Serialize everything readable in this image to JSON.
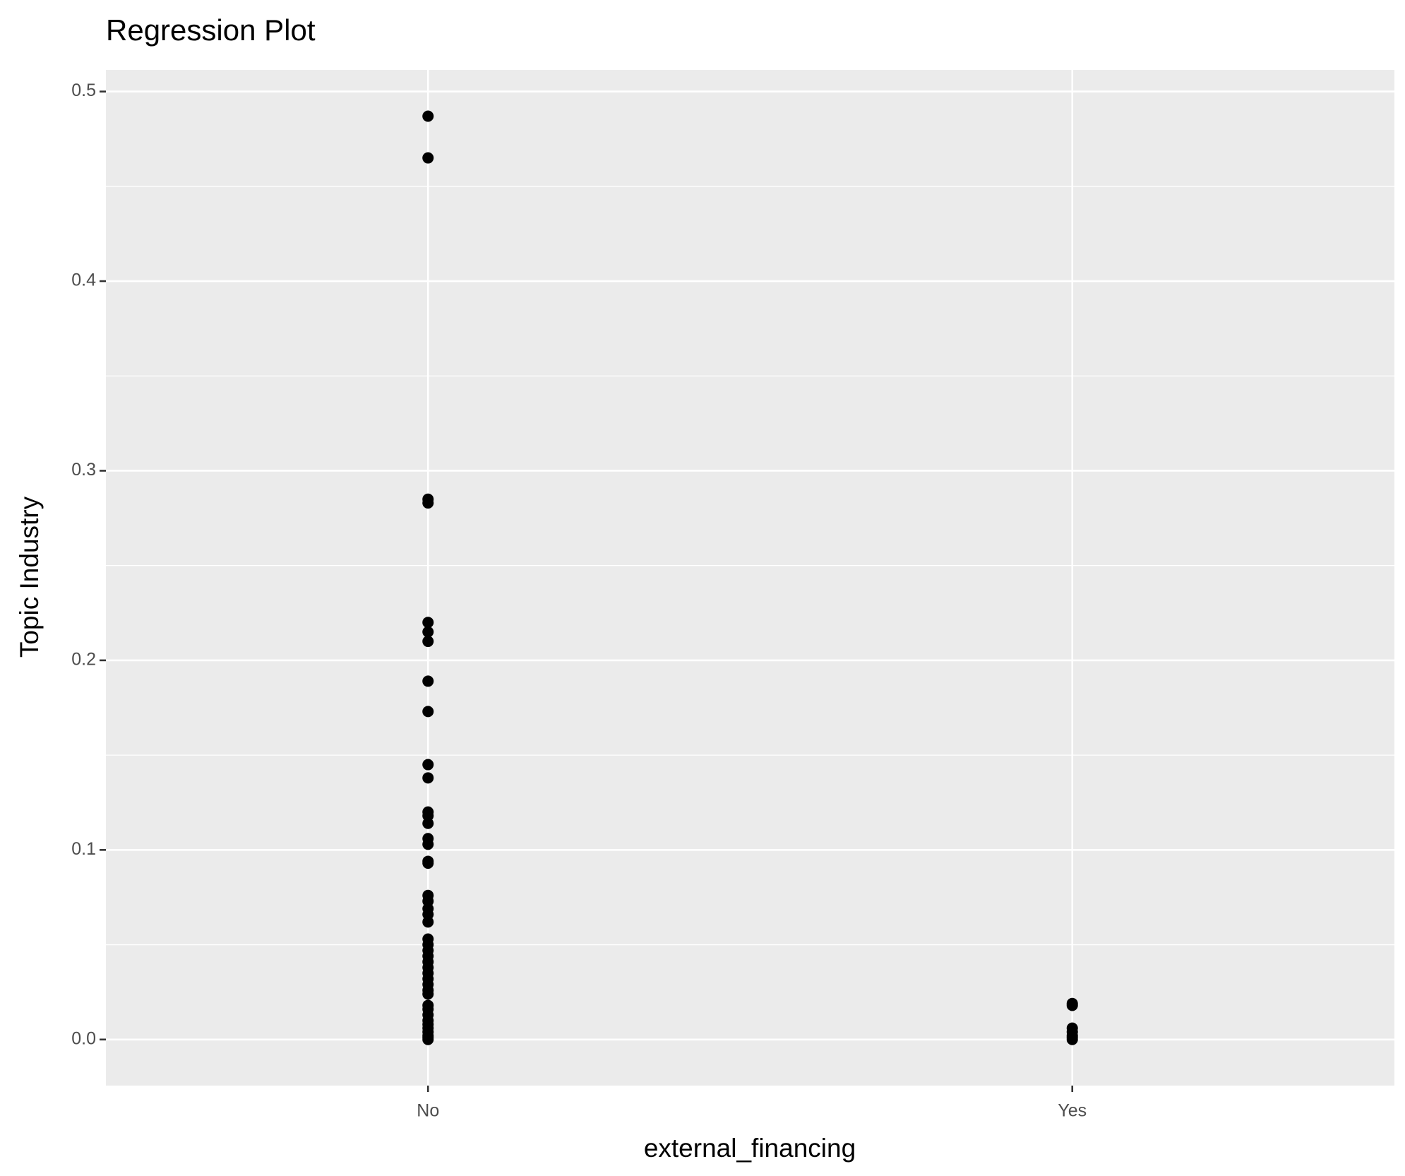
{
  "chart_data": {
    "type": "scatter",
    "title": "Regression Plot",
    "x_label": "external_financing",
    "y_label": "Topic Industry",
    "categories": [
      "No",
      "Yes"
    ],
    "values": [
      [
        0.487,
        0.465,
        0.285,
        0.283,
        0.22,
        0.215,
        0.21,
        0.189,
        0.173,
        0.145,
        0.138,
        0.12,
        0.118,
        0.114,
        0.106,
        0.103,
        0.094,
        0.093,
        0.076,
        0.073,
        0.069,
        0.066,
        0.062,
        0.053,
        0.05,
        0.047,
        0.044,
        0.041,
        0.038,
        0.035,
        0.032,
        0.029,
        0.026,
        0.024,
        0.018,
        0.016,
        0.013,
        0.01,
        0.008,
        0.006,
        0.004,
        0.002,
        0.001,
        0.0
      ],
      [
        0.019,
        0.018,
        0.006,
        0.004,
        0.002,
        0.001,
        0.0
      ]
    ],
    "color": "#000000",
    "ylim": [
      -0.0243,
      0.5114
    ],
    "yticks": [
      0.0,
      0.1,
      0.2,
      0.3,
      0.4,
      0.5
    ],
    "ytick_labels": [
      "0.0",
      "0.1",
      "0.2",
      "0.3",
      "0.4",
      "0.5"
    ],
    "grid": true
  }
}
